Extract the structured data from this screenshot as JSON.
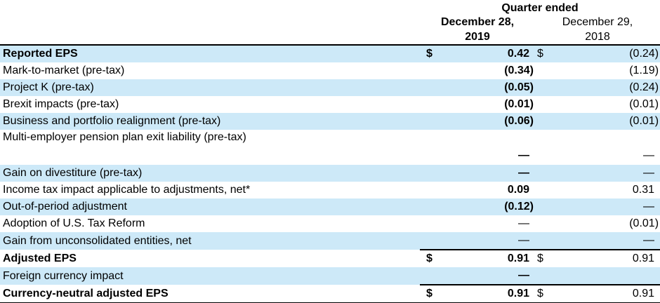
{
  "header": {
    "quarter_ended": "Quarter ended",
    "col_2019": {
      "line1": "December 28,",
      "line2": "2019"
    },
    "col_2018": {
      "line1": "December 29,",
      "line2": "2018"
    }
  },
  "colors": {
    "row_highlight": "#cde9f8",
    "rule": "#000000",
    "text": "#000000"
  },
  "table": {
    "columns": [
      "",
      "December 28, 2019",
      "December 29, 2018"
    ],
    "rows": [
      {
        "label": "Reported EPS",
        "label_bold": true,
        "highlighted": true,
        "cur_2019": "$",
        "val_2019": "0.42",
        "bold_2019": true,
        "cur_2018": "$",
        "val_2018": "(0.24)",
        "bold_2018": false
      },
      {
        "label": "Mark-to-market (pre-tax)",
        "label_bold": false,
        "highlighted": false,
        "cur_2019": "",
        "val_2019": "(0.34)",
        "bold_2019": true,
        "cur_2018": "",
        "val_2018": "(1.19)",
        "bold_2018": false
      },
      {
        "label": "Project K (pre-tax)",
        "label_bold": false,
        "highlighted": true,
        "cur_2019": "",
        "val_2019": "(0.05)",
        "bold_2019": true,
        "cur_2018": "",
        "val_2018": "(0.24)",
        "bold_2018": false
      },
      {
        "label": "Brexit impacts (pre-tax)",
        "label_bold": false,
        "highlighted": false,
        "cur_2019": "",
        "val_2019": "(0.01)",
        "bold_2019": true,
        "cur_2018": "",
        "val_2018": "(0.01)",
        "bold_2018": false
      },
      {
        "label": "Business and portfolio realignment (pre-tax)",
        "label_bold": false,
        "highlighted": true,
        "cur_2019": "",
        "val_2019": "(0.06)",
        "bold_2019": true,
        "cur_2018": "",
        "val_2018": "(0.01)",
        "bold_2018": false
      },
      {
        "label": "Multi-employer pension plan exit liability (pre-tax)",
        "label_bold": false,
        "highlighted": false,
        "tall": true,
        "cur_2019": "",
        "val_2019": "—",
        "bold_2019": true,
        "cur_2018": "",
        "val_2018": "—",
        "bold_2018": false
      },
      {
        "label": "Gain on divestiture (pre-tax)",
        "label_bold": false,
        "highlighted": true,
        "cur_2019": "",
        "val_2019": "—",
        "bold_2019": true,
        "cur_2018": "",
        "val_2018": "—",
        "bold_2018": false
      },
      {
        "label": "Income tax impact applicable to adjustments, net*",
        "label_bold": false,
        "highlighted": false,
        "cur_2019": "",
        "val_2019": "0.09",
        "bold_2019": true,
        "cur_2018": "",
        "val_2018": "0.31",
        "bold_2018": false
      },
      {
        "label": "Out-of-period adjustment",
        "label_bold": false,
        "highlighted": true,
        "cur_2019": "",
        "val_2019": "(0.12)",
        "bold_2019": true,
        "cur_2018": "",
        "val_2018": "—",
        "bold_2018": false
      },
      {
        "label": "Adoption of U.S. Tax Reform",
        "label_bold": false,
        "highlighted": false,
        "cur_2019": "",
        "val_2019": "—",
        "bold_2019": false,
        "cur_2018": "",
        "val_2018": "(0.01)",
        "bold_2018": false
      },
      {
        "label": "Gain from unconsolidated entities, net",
        "label_bold": false,
        "highlighted": true,
        "rule_below_values": true,
        "cur_2019": "",
        "val_2019": "—",
        "bold_2019": false,
        "cur_2018": "",
        "val_2018": "—",
        "bold_2018": false
      },
      {
        "label": "Adjusted EPS",
        "label_bold": true,
        "highlighted": false,
        "cur_2019": "$",
        "val_2019": "0.91",
        "bold_2019": true,
        "cur_2018": "$",
        "val_2018": "0.91",
        "bold_2018": false
      },
      {
        "label": "Foreign currency impact",
        "label_bold": false,
        "highlighted": true,
        "rule_below_values": true,
        "cur_2019": "",
        "val_2019": "—",
        "bold_2019": true,
        "cur_2018": "",
        "val_2018": "",
        "bold_2018": false
      },
      {
        "label": "Currency-neutral adjusted EPS",
        "label_bold": true,
        "highlighted": false,
        "final_total": true,
        "cur_2019": "$",
        "val_2019": "0.91",
        "bold_2019": true,
        "cur_2018": "$",
        "val_2018": "0.91",
        "bold_2018": false
      }
    ]
  }
}
